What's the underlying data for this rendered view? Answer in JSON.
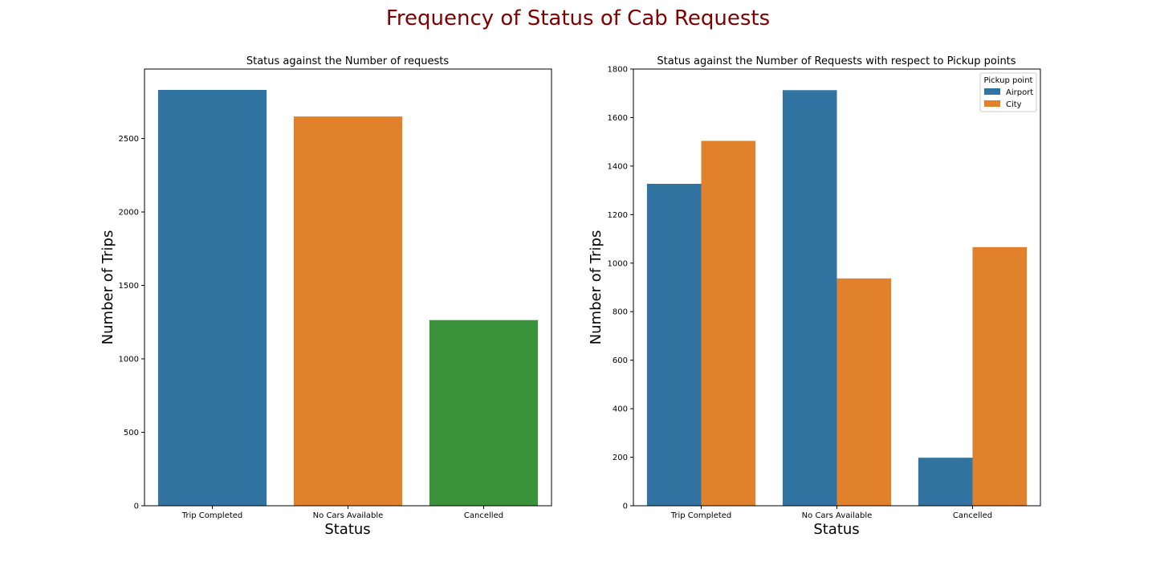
{
  "figure": {
    "title": "Frequency of Status of Cab Requests",
    "title_color": "#800000"
  },
  "chart_data": [
    {
      "type": "bar",
      "title": "Status against the Number of requests",
      "xlabel": "Status",
      "ylabel": "Number of Trips",
      "categories": [
        "Trip Completed",
        "No Cars Available",
        "Cancelled"
      ],
      "values": [
        2831,
        2650,
        1264
      ],
      "colors": [
        "#3274a1",
        "#e1812c",
        "#3a923a"
      ],
      "ylim": [
        0,
        2973
      ],
      "yticks": [
        0,
        500,
        1000,
        1500,
        2000,
        2500
      ],
      "grid": false
    },
    {
      "type": "bar",
      "title": "Status against the Number of Requests with respect to Pickup points",
      "xlabel": "Status",
      "ylabel": "Number of Trips",
      "categories": [
        "Trip Completed",
        "No Cars Available",
        "Cancelled"
      ],
      "series": [
        {
          "name": "Airport",
          "values": [
            1327,
            1713,
            198
          ],
          "color": "#3274a1"
        },
        {
          "name": "City",
          "values": [
            1504,
            937,
            1066
          ],
          "color": "#e1812c"
        }
      ],
      "ylim": [
        0,
        1800
      ],
      "yticks": [
        0,
        200,
        400,
        600,
        800,
        1000,
        1200,
        1400,
        1600,
        1800
      ],
      "legend": {
        "title": "Pickup point",
        "placement": "top-right"
      },
      "grid": false
    }
  ]
}
